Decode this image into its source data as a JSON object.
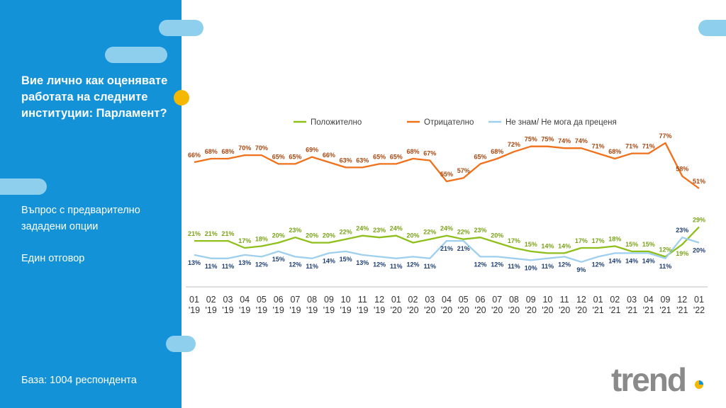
{
  "sidebar": {
    "question": "Вие лично как оценявате работата на следните институции:  Парламент?",
    "question_type": "Въпрос с предварително зададени опции",
    "answers": "Един отговор",
    "base": "База:  1004 респондента"
  },
  "logo": {
    "text": "trend"
  },
  "colors": {
    "sidebar": "#1392d8",
    "accent_pill": "#8ecfee",
    "yellow": "#f5b800",
    "logo_gray": "#8a8a8a"
  },
  "chart_data": {
    "type": "line",
    "legend_position": "top",
    "grid": false,
    "x": [
      "01 '19",
      "02 '19",
      "03 '19",
      "04 '19",
      "05 '19",
      "06 '19",
      "07 '19",
      "08 '19",
      "09 '19",
      "10 '19",
      "11 '19",
      "12 '19",
      "01 '20",
      "02 '20",
      "03 '20",
      "04 '20",
      "05 '20",
      "06 '20",
      "07 '20",
      "08 '20",
      "09 '20",
      "10 '20",
      "11 '20",
      "12 '20",
      "01 '21",
      "02 '21",
      "03 '21",
      "04 '21",
      "09 '21",
      "12 '21",
      "01 '22"
    ],
    "ylim": [
      0,
      80
    ],
    "series": [
      {
        "name": "Положително",
        "color": "#8fbf1a",
        "label_color": "#7aa318",
        "values": [
          21,
          21,
          21,
          17,
          18,
          20,
          23,
          20,
          20,
          22,
          24,
          23,
          24,
          20,
          22,
          24,
          22,
          23,
          20,
          17,
          15,
          14,
          14,
          17,
          17,
          18,
          15,
          15,
          12,
          19,
          29
        ]
      },
      {
        "name": "Отрицателно",
        "color": "#f0711b",
        "label_color": "#a8470f",
        "values": [
          66,
          68,
          68,
          70,
          70,
          65,
          65,
          69,
          66,
          63,
          63,
          65,
          65,
          68,
          67,
          55,
          57,
          65,
          68,
          72,
          75,
          75,
          74,
          74,
          71,
          68,
          71,
          71,
          77,
          58,
          51
        ]
      },
      {
        "name": "Не знам/ Не мога да преценя",
        "color": "#9fcfee",
        "label_color": "#1f3f74",
        "values": [
          13,
          11,
          11,
          13,
          12,
          15,
          12,
          11,
          14,
          15,
          13,
          12,
          11,
          12,
          11,
          21,
          21,
          12,
          12,
          11,
          10,
          11,
          12,
          9,
          12,
          14,
          14,
          14,
          11,
          23,
          20
        ]
      }
    ]
  }
}
